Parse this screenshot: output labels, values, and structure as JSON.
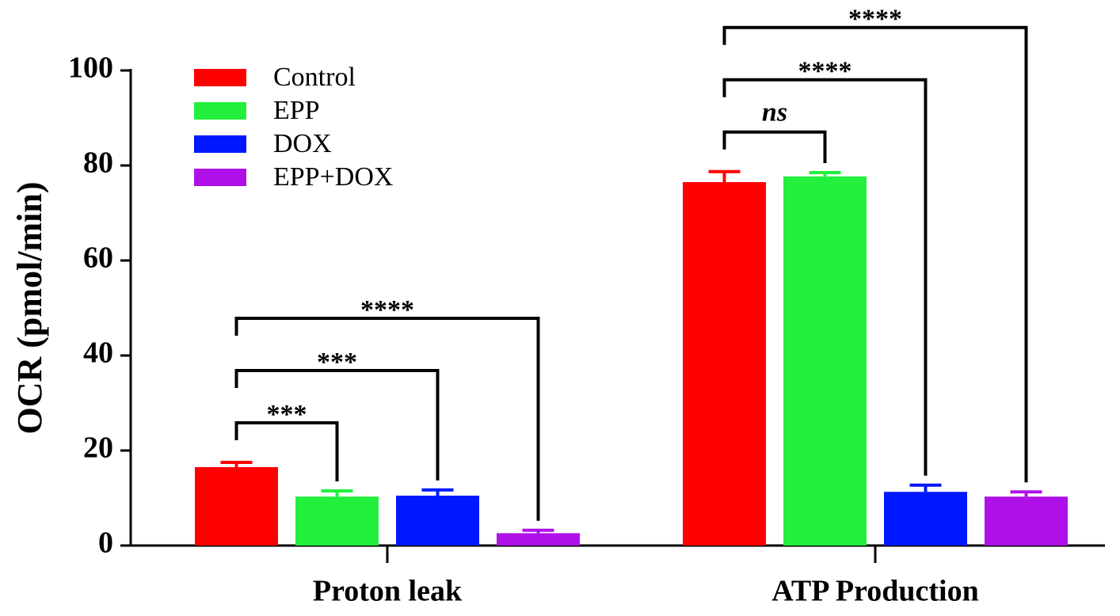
{
  "chart_data": {
    "type": "bar",
    "ylabel": "OCR (pmol/min)",
    "categories": [
      "Proton leak",
      "ATP Production"
    ],
    "series": [
      {
        "name": "Control",
        "color": "#ff0000",
        "values": [
          16.5,
          76.5
        ],
        "errors": [
          1.0,
          2.2
        ]
      },
      {
        "name": "EPP",
        "color": "#22f03c",
        "values": [
          10.3,
          77.7
        ],
        "errors": [
          1.2,
          0.8
        ]
      },
      {
        "name": "DOX",
        "color": "#0018ff",
        "values": [
          10.5,
          11.3
        ],
        "errors": [
          1.2,
          1.4
        ]
      },
      {
        "name": "EPP+DOX",
        "color": "#b010e8",
        "values": [
          2.6,
          10.3
        ],
        "errors": [
          0.6,
          1.0
        ]
      }
    ],
    "ylim": [
      0,
      100
    ],
    "yticks": [
      0,
      20,
      40,
      60,
      80,
      100
    ],
    "legend": "upper-left",
    "comparisons": [
      {
        "category": "Proton leak",
        "series": [
          "Control",
          "EPP"
        ],
        "label": "***"
      },
      {
        "category": "Proton leak",
        "series": [
          "Control",
          "DOX"
        ],
        "label": "***"
      },
      {
        "category": "Proton leak",
        "series": [
          "Control",
          "EPP+DOX"
        ],
        "label": "****"
      },
      {
        "category": "ATP Production",
        "series": [
          "Control",
          "EPP"
        ],
        "label": "ns"
      },
      {
        "category": "ATP Production",
        "series": [
          "Control",
          "DOX"
        ],
        "label": "****"
      },
      {
        "category": "ATP Production",
        "series": [
          "Control",
          "EPP+DOX"
        ],
        "label": "****"
      }
    ]
  }
}
